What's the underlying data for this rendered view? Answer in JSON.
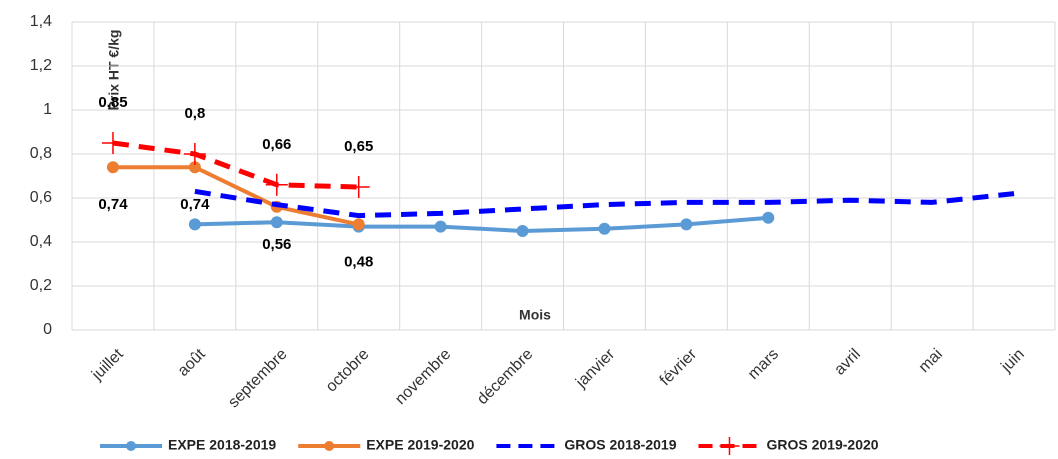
{
  "chart_data": {
    "type": "line",
    "y_label": "Prix HT €/kg",
    "x_label": "Mois",
    "categories": [
      "juillet",
      "août",
      "septembre",
      "octobre",
      "novembre",
      "décembre",
      "janvier",
      "février",
      "mars",
      "avril",
      "mai",
      "juin"
    ],
    "ylim": [
      0,
      1.4
    ],
    "yticks": [
      0,
      {
        "value": 0.2,
        "label": "0,2"
      },
      {
        "value": 0.4,
        "label": "0,4"
      },
      {
        "value": 0.6,
        "label": "0,6"
      },
      {
        "value": 0.8,
        "label": "0,8"
      },
      1,
      {
        "value": 1.2,
        "label": "1,2"
      },
      {
        "value": 1.4,
        "label": "1,4"
      }
    ],
    "grid": true,
    "legend": "bottom",
    "series": [
      {
        "name": "EXPE 2018-2019",
        "color": "#5b9bd5",
        "dash": false,
        "marker": "circle",
        "values": [
          null,
          0.48,
          0.49,
          0.47,
          0.47,
          0.45,
          0.46,
          0.48,
          0.51,
          null,
          null,
          null
        ]
      },
      {
        "name": "EXPE 2019-2020",
        "color": "#ed7d31",
        "dash": false,
        "marker": "circle",
        "values": [
          0.74,
          0.74,
          0.56,
          0.48,
          null,
          null,
          null,
          null,
          null,
          null,
          null,
          null
        ],
        "value_labels": [
          "0,74",
          "0,74",
          "0,56",
          "0,48",
          null,
          null,
          null,
          null,
          null,
          null,
          null,
          null
        ]
      },
      {
        "name": "GROS 2018-2019",
        "color": "#0000ff",
        "dash": true,
        "marker": "none",
        "values": [
          null,
          0.63,
          0.57,
          0.52,
          0.53,
          0.55,
          0.57,
          0.58,
          0.58,
          0.59,
          0.58,
          0.62
        ]
      },
      {
        "name": "GROS 2019-2020",
        "color": "#ff0000",
        "dash": true,
        "marker": "plus",
        "values": [
          0.85,
          0.8,
          0.66,
          0.65,
          null,
          null,
          null,
          null,
          null,
          null,
          null,
          null
        ],
        "value_labels": [
          "0,85",
          "0,8",
          "0,66",
          "0,65",
          null,
          null,
          null,
          null,
          null,
          null,
          null,
          null
        ]
      }
    ]
  }
}
